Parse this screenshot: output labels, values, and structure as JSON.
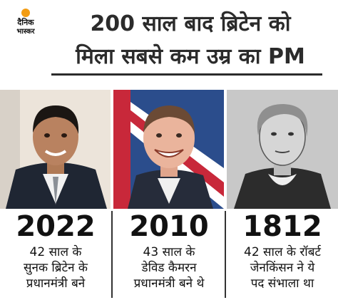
{
  "brand": {
    "line1": "दैनिक",
    "line2": "भास्कर"
  },
  "headline": {
    "line1": "200 साल बाद ब्रिटेन को",
    "line2": "मिला सबसे कम उम्र का PM"
  },
  "panels": [
    {
      "year": "2022",
      "desc": [
        "42 साल के",
        "सुनक ब्रिटेन के",
        "प्रधानमंत्री बने"
      ]
    },
    {
      "year": "2010",
      "desc": [
        "43 साल के",
        "डेविड कैमरन",
        "प्रधानमंत्री बने थे"
      ]
    },
    {
      "year": "1812",
      "desc": [
        "42 साल के रॉबर्ट",
        "जेनकिंसन ने ये",
        "पद संभाला था"
      ]
    }
  ],
  "colors": {
    "accent": "#f39c12",
    "text": "#2b2b2b"
  }
}
